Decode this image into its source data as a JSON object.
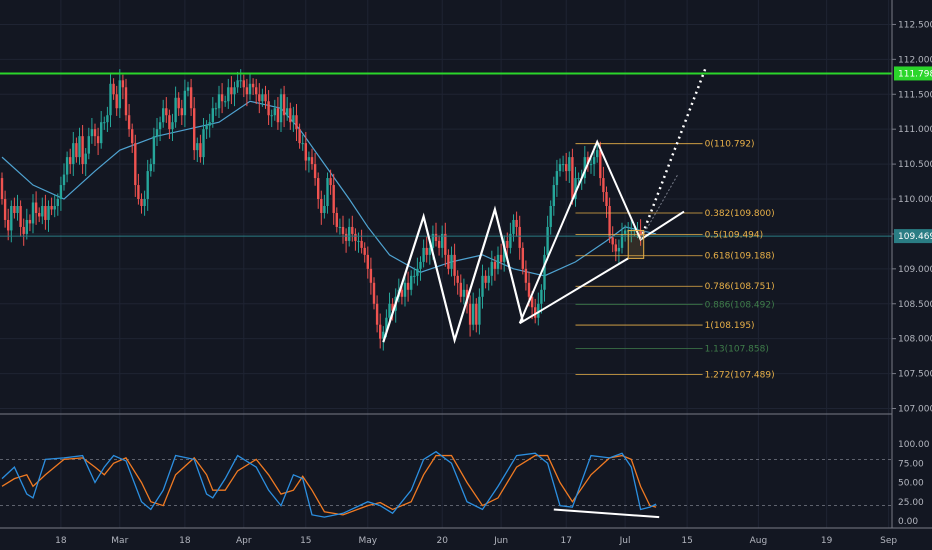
{
  "chart_data": {
    "type": "candlestick",
    "price_axis": {
      "ylim": [
        106.95,
        112.85
      ],
      "ticks": [
        112.5,
        112.0,
        111.5,
        111.0,
        110.5,
        110.0,
        109.5,
        109.0,
        108.5,
        108.0,
        107.5,
        107.0
      ],
      "tick_labels": [
        "112.500",
        "112.000",
        "111.500",
        "111.000",
        "110.500",
        "110.000",
        "109.500",
        "109.000",
        "108.500",
        "108.000",
        "107.500",
        "107.000"
      ],
      "current_price": 109.469,
      "current_price_label": "109.469",
      "resistance_price": 111.798,
      "resistance_label": "111.798"
    },
    "time_axis": {
      "labels": [
        "18",
        "Mar",
        "18",
        "Apr",
        "15",
        "May",
        "20",
        "Jun",
        "17",
        "Jul",
        "15",
        "Aug",
        "19",
        "Sep"
      ],
      "label_bars": [
        19,
        38,
        59,
        78,
        98,
        118,
        142,
        161,
        182,
        201,
        221,
        244,
        266,
        286
      ],
      "last_bar": 211
    },
    "candles": {
      "open": [
        110.3,
        110.0,
        109.7,
        109.55,
        109.9,
        109.8,
        109.9,
        109.6,
        109.5,
        109.7,
        109.65,
        109.95,
        109.8,
        109.75,
        109.9,
        109.7,
        109.9,
        109.85,
        109.9,
        110.0,
        110.2,
        110.35,
        110.6,
        110.5,
        110.8,
        110.6,
        110.9,
        110.5,
        110.65,
        110.9,
        111.0,
        110.9,
        110.8,
        111.1,
        111.1,
        111.2,
        111.65,
        111.5,
        111.3,
        111.7,
        111.6,
        111.2,
        111.0,
        110.8,
        110.2,
        110.0,
        109.9,
        110.0,
        110.4,
        110.5,
        110.9,
        111.0,
        111.1,
        111.3,
        111.2,
        111.0,
        111.1,
        111.45,
        111.3,
        111.2,
        111.55,
        111.6,
        111.3,
        110.7,
        110.8,
        110.6,
        111.0,
        111.05,
        111.1,
        111.3,
        111.3,
        111.5,
        111.4,
        111.4,
        111.6,
        111.5,
        111.6,
        111.7,
        111.7,
        111.6,
        111.5,
        111.65,
        111.6,
        111.5,
        111.4,
        111.5,
        111.4,
        111.2,
        111.2,
        111.3,
        111.1,
        111.5,
        111.2,
        111.3,
        111.1,
        111.2,
        111.0,
        110.8,
        110.8,
        110.55,
        110.6,
        110.5,
        110.3,
        110.0,
        109.8,
        109.9,
        110.3,
        110.2,
        109.8,
        109.6,
        109.6,
        109.5,
        109.4,
        109.6,
        109.5,
        109.4,
        109.4,
        109.3,
        109.2,
        109.0,
        108.8,
        108.5,
        108.2,
        108.0,
        108.1,
        108.3,
        108.5,
        108.4,
        108.6,
        108.7,
        108.6,
        108.8,
        108.7,
        108.9,
        108.9,
        109.0,
        109.1,
        109.3,
        109.2,
        109.3,
        109.5,
        109.4,
        109.3,
        109.5,
        109.2,
        109.0,
        109.2,
        108.9,
        108.8,
        108.6,
        108.7,
        108.5,
        108.2,
        108.5,
        108.2,
        108.6,
        108.9,
        108.8,
        108.9,
        109.1,
        109.0,
        109.2,
        109.1,
        109.4,
        109.3,
        109.5,
        109.7,
        109.6,
        109.3,
        109.0,
        108.8,
        108.6,
        108.45,
        108.3,
        108.5,
        108.7,
        109.2,
        109.6,
        109.9,
        110.2,
        110.4,
        110.5,
        110.5,
        110.4,
        110.6,
        110.0,
        110.3,
        110.3,
        110.3,
        110.6,
        110.5,
        110.5,
        110.6,
        110.7,
        110.3,
        110.1,
        109.9,
        109.45,
        109.35,
        109.25,
        109.3,
        109.5,
        109.55,
        109.55,
        109.55,
        109.55,
        109.55
      ],
      "close": [
        110.0,
        109.7,
        109.55,
        109.9,
        109.8,
        109.9,
        109.6,
        109.5,
        109.7,
        109.65,
        109.95,
        109.8,
        109.75,
        109.9,
        109.7,
        109.9,
        109.85,
        109.9,
        110.0,
        110.2,
        110.35,
        110.6,
        110.5,
        110.8,
        110.6,
        110.9,
        110.5,
        110.65,
        110.9,
        111.0,
        110.9,
        110.8,
        111.1,
        111.1,
        111.2,
        111.65,
        111.5,
        111.3,
        111.7,
        111.6,
        111.2,
        111.0,
        110.8,
        110.2,
        110.0,
        109.9,
        110.0,
        110.4,
        110.5,
        110.9,
        111.0,
        111.1,
        111.3,
        111.2,
        111.0,
        111.1,
        111.45,
        111.3,
        111.2,
        111.55,
        111.6,
        111.3,
        110.7,
        110.8,
        110.6,
        111.0,
        111.05,
        111.1,
        111.3,
        111.3,
        111.5,
        111.4,
        111.4,
        111.6,
        111.5,
        111.6,
        111.7,
        111.7,
        111.6,
        111.5,
        111.65,
        111.6,
        111.5,
        111.4,
        111.5,
        111.4,
        111.2,
        111.2,
        111.3,
        111.1,
        111.5,
        111.2,
        111.3,
        111.1,
        111.2,
        111.0,
        110.8,
        110.8,
        110.55,
        110.6,
        110.5,
        110.3,
        110.0,
        109.8,
        109.9,
        110.3,
        110.2,
        109.8,
        109.6,
        109.6,
        109.5,
        109.4,
        109.6,
        109.5,
        109.4,
        109.4,
        109.3,
        109.2,
        109.0,
        108.8,
        108.5,
        108.2,
        108.0,
        108.1,
        108.3,
        108.5,
        108.4,
        108.6,
        108.7,
        108.6,
        108.8,
        108.7,
        108.9,
        108.9,
        109.0,
        109.1,
        109.3,
        109.2,
        109.3,
        109.5,
        109.4,
        109.3,
        109.5,
        109.2,
        109.0,
        109.2,
        108.9,
        108.8,
        108.6,
        108.7,
        108.5,
        108.2,
        108.5,
        108.2,
        108.6,
        108.9,
        108.8,
        108.9,
        109.1,
        109.0,
        109.2,
        109.1,
        109.4,
        109.3,
        109.5,
        109.7,
        109.6,
        109.3,
        109.0,
        108.8,
        108.6,
        108.45,
        108.3,
        108.5,
        108.7,
        109.2,
        109.6,
        109.9,
        110.2,
        110.4,
        110.5,
        110.5,
        110.4,
        110.6,
        110.0,
        110.3,
        110.3,
        110.3,
        110.6,
        110.5,
        110.5,
        110.6,
        110.7,
        110.3,
        110.1,
        109.9,
        109.45,
        109.35,
        109.25,
        109.3,
        109.5,
        109.55,
        109.55,
        109.55,
        109.55,
        109.55,
        109.47
      ]
    },
    "moving_average": {
      "color": "#4fa3d1",
      "points": [
        [
          0,
          110.6
        ],
        [
          10,
          110.2
        ],
        [
          20,
          110.0
        ],
        [
          30,
          110.4
        ],
        [
          38,
          110.7
        ],
        [
          50,
          110.9
        ],
        [
          60,
          111.0
        ],
        [
          70,
          111.1
        ],
        [
          80,
          111.4
        ],
        [
          90,
          111.3
        ],
        [
          96,
          111.0
        ],
        [
          104,
          110.5
        ],
        [
          112,
          110.0
        ],
        [
          118,
          109.6
        ],
        [
          125,
          109.2
        ],
        [
          135,
          108.95
        ],
        [
          145,
          109.1
        ],
        [
          155,
          109.2
        ],
        [
          165,
          109.0
        ],
        [
          175,
          108.9
        ],
        [
          185,
          109.1
        ],
        [
          195,
          109.4
        ],
        [
          201,
          109.6
        ],
        [
          206,
          109.55
        ],
        [
          211,
          109.5
        ]
      ]
    },
    "fibonacci": [
      {
        "label": "0(110.792)",
        "price": 110.792,
        "color": "#e8b048"
      },
      {
        "label": "0.382(109.800)",
        "price": 109.8,
        "color": "#e8b048"
      },
      {
        "label": "0.5(109.494)",
        "price": 109.494,
        "color": "#e8b048"
      },
      {
        "label": "0.618(109.188)",
        "price": 109.188,
        "color": "#e8b048"
      },
      {
        "label": "0.786(108.751)",
        "price": 108.751,
        "color": "#e8b048"
      },
      {
        "label": "0.886(108.492)",
        "price": 108.492,
        "color": "#3f7d4a"
      },
      {
        "label": "1(108.195)",
        "price": 108.195,
        "color": "#e8b048"
      },
      {
        "label": "1.13(107.858)",
        "price": 107.858,
        "color": "#3f7d4a"
      },
      {
        "label": "1.272(107.489)",
        "price": 107.489,
        "color": "#e8b048"
      }
    ],
    "pattern_lines": {
      "zigzag": [
        [
          123,
          107.95
        ],
        [
          136,
          109.75
        ],
        [
          146,
          107.98
        ],
        [
          159,
          109.85
        ],
        [
          168,
          108.25
        ]
      ],
      "wedge_lower": [
        [
          167,
          108.22
        ],
        [
          202,
          109.15
        ]
      ],
      "wedge_upper": [
        [
          167,
          108.22
        ],
        [
          192,
          110.82
        ],
        [
          206,
          109.42
        ],
        [
          220,
          109.82
        ]
      ],
      "projection_dotted": [
        [
          206,
          109.42
        ],
        [
          227,
          111.88
        ]
      ],
      "projection_faint": [
        [
          206,
          109.42
        ],
        [
          218,
          110.35
        ]
      ],
      "box": {
        "bar_from": 202,
        "bar_to": 207,
        "price_low": 109.15,
        "price_high": 109.55
      }
    },
    "stochastic": {
      "ylim": [
        0,
        100
      ],
      "ticks": [
        100,
        75,
        50,
        25,
        0
      ],
      "tick_labels": [
        "100.00",
        "75.00",
        "50.00",
        "25.00",
        "0.00"
      ],
      "upper_level": 80,
      "lower_level": 20,
      "k_color": "#2c8fe0",
      "d_color": "#f07a22",
      "k": [
        [
          0,
          55
        ],
        [
          4,
          70
        ],
        [
          8,
          35
        ],
        [
          10,
          30
        ],
        [
          14,
          80
        ],
        [
          20,
          82
        ],
        [
          26,
          85
        ],
        [
          30,
          50
        ],
        [
          33,
          70
        ],
        [
          36,
          85
        ],
        [
          40,
          78
        ],
        [
          45,
          25
        ],
        [
          48,
          15
        ],
        [
          52,
          40
        ],
        [
          56,
          85
        ],
        [
          62,
          80
        ],
        [
          66,
          35
        ],
        [
          68,
          30
        ],
        [
          72,
          55
        ],
        [
          76,
          85
        ],
        [
          82,
          70
        ],
        [
          86,
          40
        ],
        [
          90,
          20
        ],
        [
          94,
          60
        ],
        [
          97,
          55
        ],
        [
          100,
          8
        ],
        [
          104,
          5
        ],
        [
          110,
          10
        ],
        [
          118,
          25
        ],
        [
          122,
          20
        ],
        [
          126,
          10
        ],
        [
          132,
          40
        ],
        [
          136,
          80
        ],
        [
          140,
          90
        ],
        [
          145,
          75
        ],
        [
          150,
          25
        ],
        [
          155,
          15
        ],
        [
          160,
          45
        ],
        [
          166,
          85
        ],
        [
          172,
          88
        ],
        [
          176,
          75
        ],
        [
          180,
          20
        ],
        [
          184,
          18
        ],
        [
          190,
          85
        ],
        [
          196,
          82
        ],
        [
          200,
          88
        ],
        [
          203,
          70
        ],
        [
          206,
          15
        ],
        [
          209,
          18
        ],
        [
          211,
          22
        ]
      ],
      "d": [
        [
          0,
          45
        ],
        [
          4,
          55
        ],
        [
          8,
          60
        ],
        [
          10,
          45
        ],
        [
          14,
          60
        ],
        [
          20,
          80
        ],
        [
          26,
          82
        ],
        [
          30,
          70
        ],
        [
          33,
          60
        ],
        [
          36,
          75
        ],
        [
          40,
          82
        ],
        [
          45,
          50
        ],
        [
          48,
          25
        ],
        [
          52,
          20
        ],
        [
          56,
          60
        ],
        [
          62,
          82
        ],
        [
          66,
          60
        ],
        [
          68,
          40
        ],
        [
          72,
          40
        ],
        [
          76,
          65
        ],
        [
          82,
          80
        ],
        [
          86,
          60
        ],
        [
          90,
          35
        ],
        [
          94,
          40
        ],
        [
          97,
          58
        ],
        [
          100,
          40
        ],
        [
          104,
          12
        ],
        [
          110,
          8
        ],
        [
          118,
          20
        ],
        [
          122,
          24
        ],
        [
          126,
          15
        ],
        [
          132,
          25
        ],
        [
          136,
          60
        ],
        [
          140,
          85
        ],
        [
          145,
          85
        ],
        [
          150,
          50
        ],
        [
          155,
          20
        ],
        [
          160,
          30
        ],
        [
          166,
          70
        ],
        [
          172,
          85
        ],
        [
          176,
          85
        ],
        [
          180,
          50
        ],
        [
          184,
          25
        ],
        [
          190,
          60
        ],
        [
          196,
          82
        ],
        [
          200,
          85
        ],
        [
          203,
          80
        ],
        [
          206,
          45
        ],
        [
          209,
          20
        ],
        [
          211,
          18
        ]
      ],
      "divergence_line": [
        [
          178,
          15
        ],
        [
          212,
          5
        ]
      ]
    }
  }
}
